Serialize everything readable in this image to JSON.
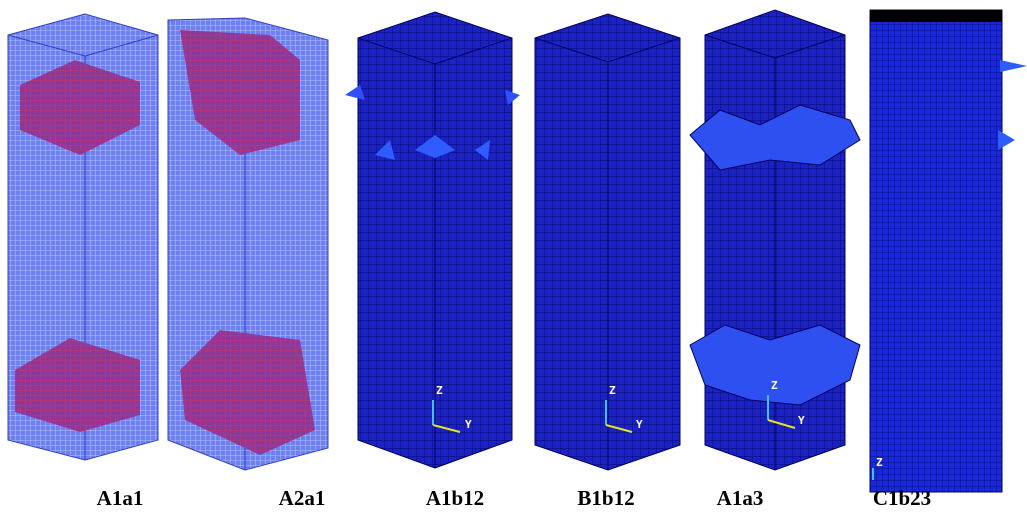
{
  "panels": [
    {
      "label": "A1a1"
    },
    {
      "label": "A2a1"
    },
    {
      "label": "A1b12",
      "axis": {
        "z": "Z",
        "y": "Y"
      }
    },
    {
      "label": "B1b12",
      "axis": {
        "z": "Z",
        "y": "Y"
      }
    },
    {
      "label": "A1a3",
      "axis": {
        "z": "Z",
        "y": "Y"
      }
    },
    {
      "label": "C1b23",
      "axis": {
        "z": "Z"
      }
    }
  ]
}
